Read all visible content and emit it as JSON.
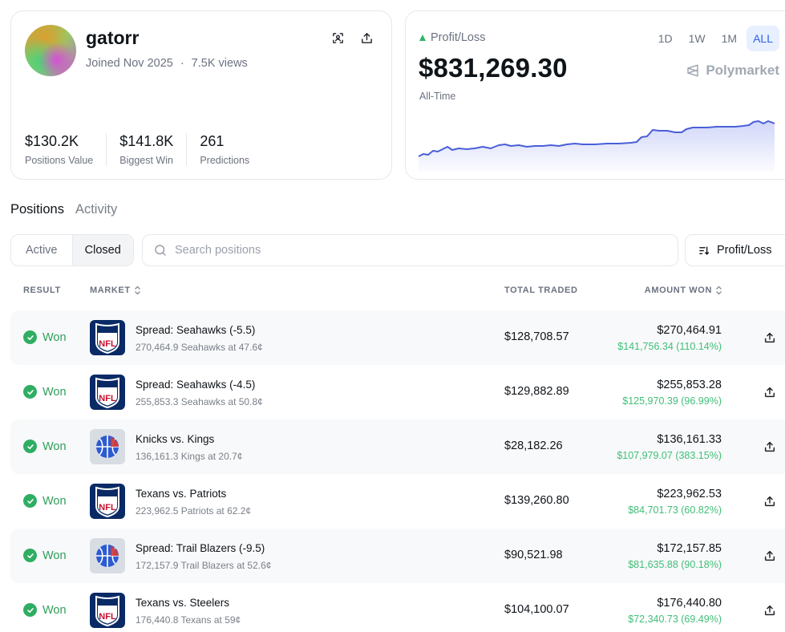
{
  "profile": {
    "username": "gatorr",
    "joined": "Joined Nov 2025",
    "separator": "·",
    "views": "7.5K views",
    "stats": [
      {
        "value": "$130.2K",
        "label": "Positions Value"
      },
      {
        "value": "$141.8K",
        "label": "Biggest Win"
      },
      {
        "value": "261",
        "label": "Predictions"
      }
    ]
  },
  "pnl": {
    "label": "Profit/Loss",
    "value": "$831,269.30",
    "period": "All-Time",
    "ranges": [
      "1D",
      "1W",
      "1M",
      "ALL"
    ],
    "active_range": "ALL",
    "brand": "Polymarket",
    "accent": "#4a5fd8"
  },
  "tabs": {
    "positions": "Positions",
    "activity": "Activity"
  },
  "filters": {
    "active": "Active",
    "closed": "Closed",
    "search_placeholder": "Search positions",
    "sort_label": "Profit/Loss"
  },
  "table": {
    "headers": {
      "result": "RESULT",
      "market": "MARKET",
      "total_traded": "TOTAL TRADED",
      "amount_won": "AMOUNT WON"
    },
    "rows": [
      {
        "result": "Won",
        "league": "nfl",
        "title": "Spread: Seahawks (-5.5)",
        "sub": "270,464.9 Seahawks at 47.6¢",
        "traded": "$128,708.57",
        "won": "$270,464.91",
        "won_sub": "$141,756.34 (110.14%)"
      },
      {
        "result": "Won",
        "league": "nfl",
        "title": "Spread: Seahawks (-4.5)",
        "sub": "255,853.3 Seahawks at 50.8¢",
        "traded": "$129,882.89",
        "won": "$255,853.28",
        "won_sub": "$125,970.39 (96.99%)"
      },
      {
        "result": "Won",
        "league": "nba",
        "title": "Knicks vs. Kings",
        "sub": "136,161.3 Kings at 20.7¢",
        "traded": "$28,182.26",
        "won": "$136,161.33",
        "won_sub": "$107,979.07 (383.15%)"
      },
      {
        "result": "Won",
        "league": "nfl",
        "title": "Texans vs. Patriots",
        "sub": "223,962.5 Patriots at 62.2¢",
        "traded": "$139,260.80",
        "won": "$223,962.53",
        "won_sub": "$84,701.73 (60.82%)"
      },
      {
        "result": "Won",
        "league": "nba",
        "title": "Spread: Trail Blazers (-9.5)",
        "sub": "172,157.9 Trail Blazers at 52.6¢",
        "traded": "$90,521.98",
        "won": "$172,157.85",
        "won_sub": "$81,635.88 (90.18%)"
      },
      {
        "result": "Won",
        "league": "nfl",
        "title": "Texans vs. Steelers",
        "sub": "176,440.8 Texans at 59¢",
        "traded": "$104,100.07",
        "won": "$176,440.80",
        "won_sub": "$72,340.73 (69.49%)"
      }
    ]
  },
  "icons": {
    "scan": "scan-icon",
    "share": "share-icon",
    "search": "search-icon",
    "sort": "sort-icon",
    "check": "check-circle-icon",
    "nfl": "nfl-logo-icon",
    "nba": "basketball-icon",
    "polymarket": "polymarket-logo-icon",
    "gain_triangle": "triangle-up-icon"
  },
  "colors": {
    "won_green": "#2f9e5a",
    "gain_green": "#3fbf78",
    "range_active_bg": "#e8efff",
    "range_active_fg": "#2a62e6"
  }
}
